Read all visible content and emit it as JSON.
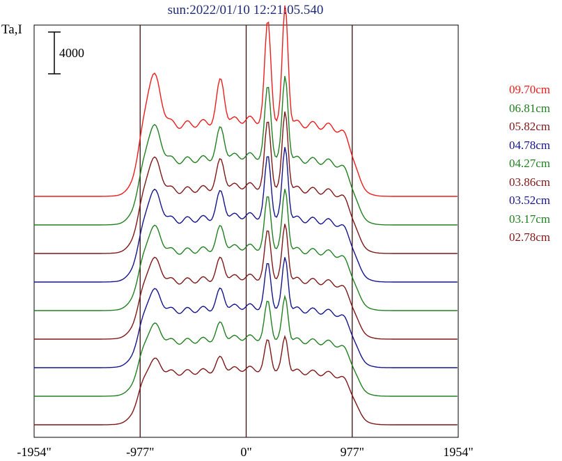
{
  "chart_data": {
    "type": "line",
    "title": "sun:2022/01/10 12:21:05.540",
    "ylabel": "Ta,I",
    "scale_bar_label": "4000",
    "scale_bar_value": 4000,
    "xlim": [
      -1954,
      1954
    ],
    "x_ticks": [
      {
        "value": -1954,
        "label": "-1954\""
      },
      {
        "value": -977,
        "label": "-977\""
      },
      {
        "value": 0,
        "label": "0\""
      },
      {
        "value": 977,
        "label": "977\""
      },
      {
        "value": 1954,
        "label": "1954\""
      }
    ],
    "vertical_lines": [
      -977,
      0,
      977
    ],
    "series": [
      {
        "name": "09.70cm",
        "color": "#ee1c1c",
        "offset": 9,
        "peak": 1.0
      },
      {
        "name": "06.81cm",
        "color": "#208020",
        "offset": 8,
        "peak": 0.78
      },
      {
        "name": "05.82cm",
        "color": "#7f1717",
        "offset": 7,
        "peak": 0.74
      },
      {
        "name": "04.78cm",
        "color": "#14148c",
        "offset": 6,
        "peak": 0.7
      },
      {
        "name": "04.27cm",
        "color": "#208020",
        "offset": 5,
        "peak": 0.62
      },
      {
        "name": "03.86cm",
        "color": "#7f1717",
        "offset": 4,
        "peak": 0.58
      },
      {
        "name": "03.52cm",
        "color": "#14148c",
        "offset": 3,
        "peak": 0.55
      },
      {
        "name": "03.17cm",
        "color": "#208020",
        "offset": 2,
        "peak": 0.48
      },
      {
        "name": "02.78cm",
        "color": "#7f1717",
        "offset": 1,
        "peak": 0.4
      }
    ]
  }
}
